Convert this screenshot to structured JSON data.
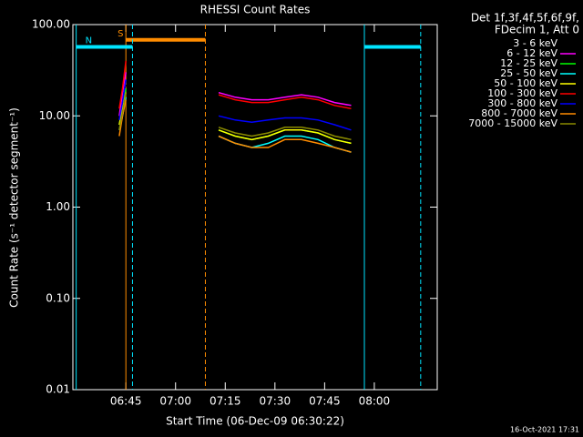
{
  "chart_data": {
    "type": "line",
    "title": "RHESSI Count Rates",
    "xlabel": "Start Time (06-Dec-09 06:30:22)",
    "ylabel": "Count Rate (s⁻¹ detector segment⁻¹)",
    "legend_title": [
      "Det 1f,3f,4f,5f,6f,9f,",
      "FDecim 1, Att 0"
    ],
    "footer": "16-Oct-2021 17:31",
    "log_y": true,
    "legend": "outside-right",
    "xlim": [
      "06:29",
      "08:19"
    ],
    "xticks": [
      "06:45",
      "07:00",
      "07:15",
      "07:30",
      "07:45",
      "08:00"
    ],
    "ylim": [
      0.01,
      100
    ],
    "yticks": [
      {
        "value": 0.01,
        "label": "0.01"
      },
      {
        "value": 0.1,
        "label": "0.10"
      },
      {
        "value": 1,
        "label": "1.00"
      },
      {
        "value": 10,
        "label": "10.00"
      },
      {
        "value": 100,
        "label": "100.00"
      }
    ],
    "x": [
      "06:43",
      "06:44",
      "06:45",
      "07:00",
      "07:13",
      "07:18",
      "07:23",
      "07:28",
      "07:33",
      "07:38",
      "07:43",
      "07:48",
      "07:53"
    ],
    "series": [
      {
        "name": "3 - 6 keV",
        "color": "#000000",
        "values": [
          9,
          16,
          22,
          null,
          16,
          15,
          14,
          14,
          15,
          15,
          14,
          13,
          11
        ]
      },
      {
        "name": "6 - 12 keV",
        "color": "#ff00ff",
        "values": [
          10,
          18,
          30,
          null,
          18,
          16,
          15,
          15,
          16,
          17,
          16,
          14,
          13
        ]
      },
      {
        "name": "12 - 25 keV",
        "color": "#00ff00",
        "values": [
          8,
          12,
          20,
          null,
          7,
          6,
          5.5,
          6,
          7,
          7,
          6.5,
          5.5,
          5
        ]
      },
      {
        "name": "25 - 50 keV",
        "color": "#00ffff",
        "values": [
          7,
          10,
          16,
          null,
          6,
          5,
          4.5,
          5,
          6,
          6,
          5.5,
          4.5,
          4
        ]
      },
      {
        "name": "50 - 100 keV",
        "color": "#ffff00",
        "values": [
          8,
          12,
          18,
          null,
          7,
          6,
          5.5,
          6,
          7,
          7,
          6.5,
          5.5,
          5
        ]
      },
      {
        "name": "100 - 300 keV",
        "color": "#ff0000",
        "values": [
          12,
          20,
          40,
          null,
          17,
          15,
          14,
          14,
          15,
          16,
          15,
          13,
          12
        ]
      },
      {
        "name": "300 - 800 keV",
        "color": "#0000ff",
        "values": [
          9,
          14,
          25,
          null,
          10,
          9,
          8.5,
          9,
          9.5,
          9.5,
          9,
          8,
          7
        ]
      },
      {
        "name": "800 - 7000 keV",
        "color": "#ff8c00",
        "values": [
          6,
          10,
          15,
          null,
          6,
          5,
          4.5,
          4.5,
          5.5,
          5.5,
          5,
          4.5,
          4
        ]
      },
      {
        "name": "7000 - 15000 keV",
        "color": "#8b8b00",
        "values": [
          7,
          11,
          18,
          null,
          7.5,
          6.5,
          6,
          6.5,
          7.5,
          7.5,
          7,
          6,
          5.5
        ]
      }
    ],
    "markers": [
      {
        "label": "S",
        "color": "#ff8c00",
        "start": "06:45",
        "end": "07:09",
        "level": 68
      },
      {
        "label": "N",
        "color": "#00e5ff",
        "start": "06:30",
        "end": "06:47",
        "level": 57
      },
      {
        "color": "#00e5ff",
        "start": "07:57",
        "end": "08:14",
        "level": 57
      }
    ]
  }
}
